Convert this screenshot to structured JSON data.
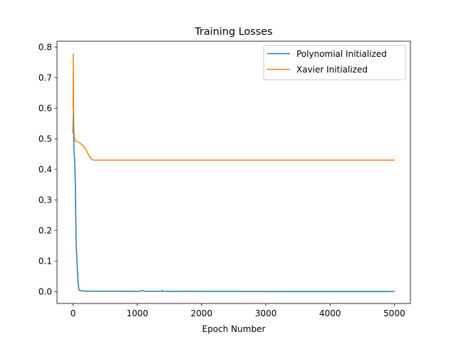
{
  "chart_data": {
    "type": "line",
    "title": "Training Losses",
    "xlabel": "Epoch Number",
    "ylabel": "",
    "xlim": [
      -250,
      5250
    ],
    "ylim": [
      -0.039,
      0.819
    ],
    "xticks": [
      0,
      1000,
      2000,
      3000,
      4000,
      5000
    ],
    "yticks": [
      0.0,
      0.1,
      0.2,
      0.3,
      0.4,
      0.5,
      0.6,
      0.7,
      0.8
    ],
    "xtick_labels": [
      "0",
      "1000",
      "2000",
      "3000",
      "4000",
      "5000"
    ],
    "ytick_labels": [
      "0.0",
      "0.1",
      "0.2",
      "0.3",
      "0.4",
      "0.5",
      "0.6",
      "0.7",
      "0.8"
    ],
    "grid": false,
    "legend_position": "upper-right",
    "series": [
      {
        "name": "Polynomial Initialized",
        "color": "#1f77b4",
        "x": [
          0,
          5,
          10,
          15,
          20,
          25,
          30,
          35,
          40,
          45,
          50,
          55,
          60,
          70,
          80,
          90,
          100,
          120,
          150,
          200,
          300,
          400,
          500,
          700,
          1000,
          1100,
          1110,
          1200,
          1380,
          1390,
          1400,
          1500,
          1750,
          2000,
          2500,
          3000,
          4000,
          5000
        ],
        "values": [
          0.52,
          0.595,
          0.5,
          0.46,
          0.44,
          0.43,
          0.4,
          0.35,
          0.28,
          0.2,
          0.14,
          0.13,
          0.1,
          0.06,
          0.025,
          0.008,
          0.004,
          0.003,
          0.002,
          0.0015,
          0.001,
          0.001,
          0.001,
          0.001,
          0.0008,
          0.003,
          0.001,
          0.0008,
          0.001,
          0.004,
          0.0008,
          0.0006,
          0.0007,
          0.0005,
          0.0004,
          0.0003,
          0.0002,
          0.0002
        ]
      },
      {
        "name": "Xavier Initialized",
        "color": "#ff7f0e",
        "x": [
          0,
          3,
          6,
          10,
          15,
          20,
          25,
          30,
          40,
          50,
          70,
          100,
          130,
          160,
          200,
          230,
          260,
          290,
          320,
          350,
          400,
          500,
          1000,
          2000,
          3000,
          4000,
          5000
        ],
        "values": [
          0.6,
          0.778,
          0.66,
          0.56,
          0.52,
          0.505,
          0.5,
          0.497,
          0.494,
          0.492,
          0.49,
          0.487,
          0.482,
          0.476,
          0.465,
          0.452,
          0.44,
          0.433,
          0.43,
          0.43,
          0.43,
          0.43,
          0.43,
          0.43,
          0.43,
          0.43,
          0.43
        ]
      }
    ]
  }
}
